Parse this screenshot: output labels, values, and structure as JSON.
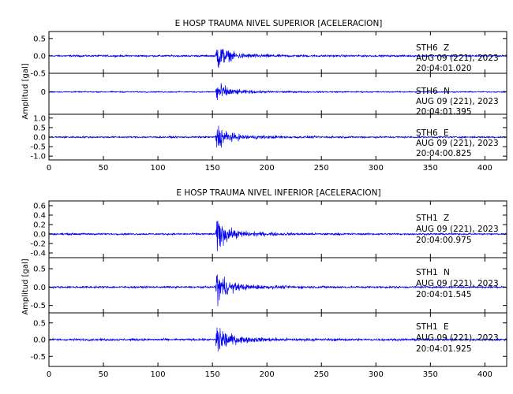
{
  "chart_data": [
    {
      "type": "line",
      "title": "E HOSP TRAUMA NIVEL SUPERIOR [ACELERACION]",
      "ylabel": "Amplitud  [gal]",
      "xlim": [
        0,
        420
      ],
      "xticks": [
        0,
        50,
        100,
        150,
        200,
        250,
        300,
        350,
        400
      ],
      "grid": false,
      "event_onset_x": 153,
      "panels": [
        {
          "station": "STH6",
          "component": "Z",
          "date": "AUG 09 (221), 2023",
          "time": "20:04:01.020",
          "ylim": [
            -0.5,
            0.7
          ],
          "yticks": [
            0.5,
            0.0,
            -0.5
          ],
          "ytick_labels": [
            "0.5",
            "0.0",
            "-0.5"
          ],
          "noise_level": 0.04,
          "peak_amplitude": 0.6
        },
        {
          "station": "STH6",
          "component": "N",
          "date": "AUG 09 (221), 2023",
          "time": "20:04:01.395",
          "ylim": [
            -1.2,
            1.0
          ],
          "yticks": [
            0
          ],
          "ytick_labels": [
            "0"
          ],
          "noise_level": 0.05,
          "peak_amplitude": 0.9
        },
        {
          "station": "STH6",
          "component": "E",
          "date": "AUG 09 (221), 2023",
          "time": "20:04:00.825",
          "ylim": [
            -1.2,
            1.2
          ],
          "yticks": [
            1.0,
            0.5,
            0.0,
            -0.5,
            -1.0
          ],
          "ytick_labels": [
            "1.0",
            "0.5",
            "0.0",
            "-0.5",
            "-1.0"
          ],
          "noise_level": 0.07,
          "peak_amplitude": 1.05
        }
      ]
    },
    {
      "type": "line",
      "title": "E HOSP TRAUMA NIVEL INFERIOR [ACELERACION]",
      "ylabel": "Amplitud  [gal]",
      "xlim": [
        0,
        420
      ],
      "xticks": [
        0,
        50,
        100,
        150,
        200,
        250,
        300,
        350,
        400
      ],
      "grid": false,
      "event_onset_x": 153,
      "panels": [
        {
          "station": "STH1",
          "component": "Z",
          "date": "AUG 09 (221), 2023",
          "time": "20:04:00.975",
          "ylim": [
            -0.5,
            0.7
          ],
          "yticks": [
            0.6,
            0.4,
            0.2,
            0.0,
            -0.2,
            -0.4
          ],
          "ytick_labels": [
            "0.6",
            "0.4",
            "0.2",
            "0.0",
            "-0.2",
            "-0.4"
          ],
          "noise_level": 0.03,
          "peak_amplitude": 0.55
        },
        {
          "station": "STH1",
          "component": "N",
          "date": "AUG 09 (221), 2023",
          "time": "20:04:01.545",
          "ylim": [
            -0.7,
            0.8
          ],
          "yticks": [
            0.5,
            0.0,
            -0.5
          ],
          "ytick_labels": [
            "0.5",
            "0.0",
            "-0.5"
          ],
          "noise_level": 0.04,
          "peak_amplitude": 0.7
        },
        {
          "station": "STH1",
          "component": "E",
          "date": "AUG 09 (221), 2023",
          "time": "20:04:01.925",
          "ylim": [
            -0.8,
            0.8
          ],
          "yticks": [
            0.5,
            0.0,
            -0.5
          ],
          "ytick_labels": [
            "0.5",
            "0.0",
            "-0.5"
          ],
          "noise_level": 0.05,
          "peak_amplitude": 0.75
        }
      ]
    }
  ]
}
